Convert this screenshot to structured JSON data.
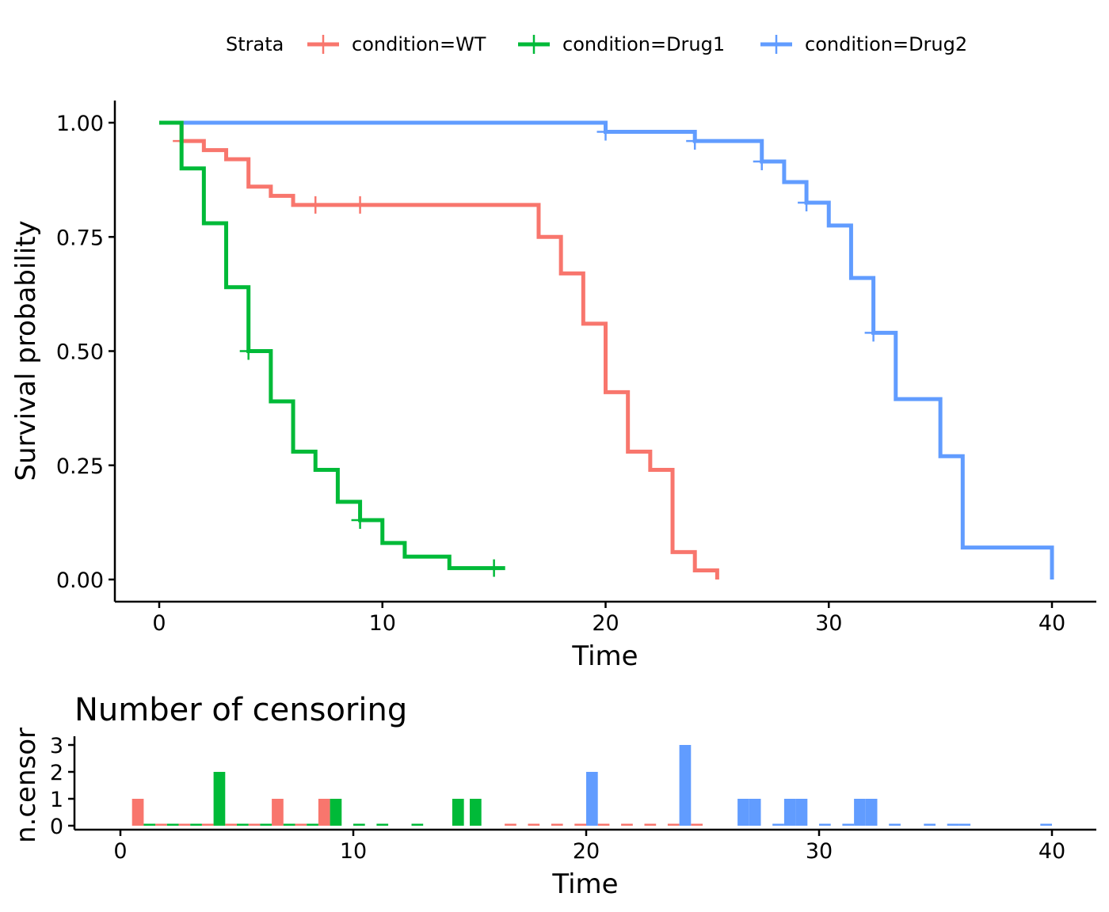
{
  "chart_data": [
    {
      "type": "line",
      "subtype": "kaplan-meier step curve",
      "title": "",
      "xlabel": "Time",
      "ylabel": "Survival probability",
      "xlim": [
        -2,
        42
      ],
      "ylim": [
        -0.05,
        1.05
      ],
      "x_ticks": [
        0,
        10,
        20,
        30,
        40
      ],
      "x_tick_labels": [
        "0",
        "10",
        "20",
        "30",
        "40"
      ],
      "y_ticks": [
        0,
        0.25,
        0.5,
        0.75,
        1.0
      ],
      "y_tick_labels": [
        "0.00",
        "0.25",
        "0.50",
        "0.75",
        "1.00"
      ],
      "grid": false,
      "legend": {
        "title": "Strata",
        "position": "top",
        "entries": [
          "condition=WT",
          "condition=Drug1",
          "condition=Drug2"
        ]
      },
      "series": [
        {
          "name": "condition=WT",
          "color": "#F8766D",
          "steps": [
            [
              0,
              1.0
            ],
            [
              1,
              0.96
            ],
            [
              2,
              0.94
            ],
            [
              3,
              0.92
            ],
            [
              4,
              0.86
            ],
            [
              5,
              0.84
            ],
            [
              6,
              0.82
            ],
            [
              17,
              0.82
            ],
            [
              17,
              0.75
            ],
            [
              18,
              0.67
            ],
            [
              19,
              0.56
            ],
            [
              20,
              0.41
            ],
            [
              21,
              0.28
            ],
            [
              22,
              0.24
            ],
            [
              23,
              0.06
            ],
            [
              24,
              0.02
            ],
            [
              25,
              0.02
            ],
            [
              25,
              0.0
            ]
          ],
          "censor_marks": [
            [
              1,
              0.96
            ],
            [
              7,
              0.82
            ],
            [
              9,
              0.82
            ]
          ]
        },
        {
          "name": "condition=Drug1",
          "color": "#00BA38",
          "steps": [
            [
              0,
              1.0
            ],
            [
              1,
              0.9
            ],
            [
              2,
              0.78
            ],
            [
              3,
              0.64
            ],
            [
              4,
              0.5
            ],
            [
              5,
              0.39
            ],
            [
              6,
              0.28
            ],
            [
              7,
              0.24
            ],
            [
              8,
              0.17
            ],
            [
              9,
              0.13
            ],
            [
              10,
              0.08
            ],
            [
              11,
              0.05
            ],
            [
              13,
              0.025
            ],
            [
              15.5,
              0.025
            ]
          ],
          "censor_marks": [
            [
              4,
              0.5
            ],
            [
              9,
              0.13
            ],
            [
              15,
              0.025
            ]
          ]
        },
        {
          "name": "condition=Drug2",
          "color": "#619CFF",
          "steps": [
            [
              0,
              1.0
            ],
            [
              20,
              0.98
            ],
            [
              24,
              0.96
            ],
            [
              27,
              0.915
            ],
            [
              28,
              0.87
            ],
            [
              29,
              0.825
            ],
            [
              30,
              0.775
            ],
            [
              31,
              0.66
            ],
            [
              32,
              0.54
            ],
            [
              33,
              0.395
            ],
            [
              35,
              0.27
            ],
            [
              36,
              0.07
            ],
            [
              40,
              0.07
            ],
            [
              40,
              0.0
            ]
          ],
          "censor_marks": [
            [
              20,
              0.98
            ],
            [
              24,
              0.96
            ],
            [
              27,
              0.915
            ],
            [
              29,
              0.825
            ],
            [
              32,
              0.54
            ]
          ]
        }
      ]
    },
    {
      "type": "bar",
      "title": "Number of censoring",
      "xlabel": "Time",
      "ylabel": "n.censor",
      "xlim": [
        -2,
        42
      ],
      "ylim": [
        0,
        3
      ],
      "x_ticks": [
        0,
        10,
        20,
        30,
        40
      ],
      "x_tick_labels": [
        "0",
        "10",
        "20",
        "30",
        "40"
      ],
      "y_ticks": [
        0,
        1,
        2,
        3
      ],
      "y_tick_labels": [
        "0",
        "1",
        "2",
        "3"
      ],
      "grid": false,
      "series": [
        {
          "name": "condition=WT",
          "color": "#F8766D",
          "x": [
            0.75,
            1.75,
            2.75,
            3.75,
            4.75,
            5.75,
            6.75,
            7.75,
            8.75,
            16.75,
            17.75,
            18.75,
            19.75,
            20.75,
            21.75,
            22.75,
            23.75,
            24.75
          ],
          "values": [
            1,
            0,
            0,
            0,
            0,
            0,
            1,
            0,
            1,
            0,
            0,
            0,
            0,
            0,
            0,
            0,
            0,
            0
          ]
        },
        {
          "name": "condition=Drug1",
          "color": "#00BA38",
          "x": [
            1.25,
            2.25,
            3.25,
            4.25,
            5.25,
            6.25,
            7.25,
            8.25,
            9.25,
            10.25,
            11.25,
            12.75,
            14.5,
            15.25
          ],
          "values": [
            0,
            0,
            0,
            2,
            0,
            0,
            0,
            0,
            1,
            0,
            0,
            0,
            1,
            1
          ]
        },
        {
          "name": "condition=Drug2",
          "color": "#619CFF",
          "x": [
            20.25,
            24.25,
            26.75,
            27.25,
            28.25,
            28.75,
            29.25,
            30.25,
            31.25,
            31.75,
            32.25,
            33.25,
            34.75,
            35.75,
            36.25,
            39.75
          ],
          "values": [
            2,
            3,
            1,
            1,
            0,
            1,
            1,
            0,
            0,
            1,
            1,
            0,
            0,
            0,
            0,
            0
          ]
        }
      ]
    }
  ]
}
